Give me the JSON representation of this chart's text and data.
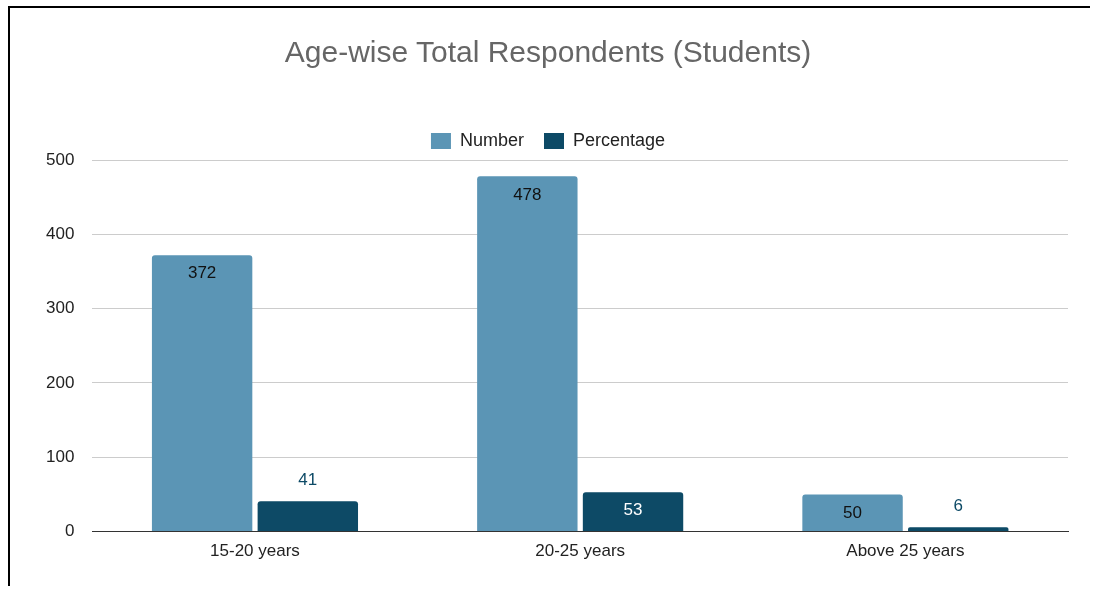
{
  "chart_data": {
    "type": "bar",
    "title": "Age-wise Total Respondents (Students)",
    "categories": [
      "15-20 years",
      "20-25 years",
      "Above 25 years"
    ],
    "series": [
      {
        "name": "Number",
        "color": "#5b95b5",
        "values": [
          372,
          478,
          50
        ]
      },
      {
        "name": "Percentage",
        "color": "#0d4a66",
        "values": [
          41,
          53,
          6
        ]
      }
    ],
    "ylim": [
      0,
      500
    ],
    "yticks": [
      0,
      100,
      200,
      300,
      400,
      500
    ],
    "grid": "y",
    "legend": "top",
    "data_labels": true
  }
}
